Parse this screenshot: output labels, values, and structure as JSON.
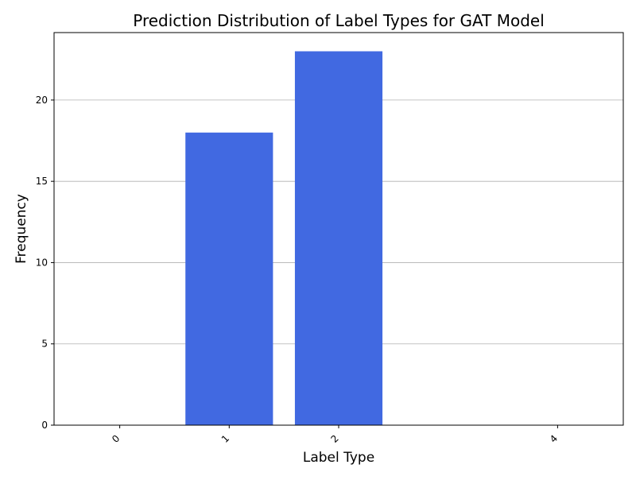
{
  "chart_data": {
    "type": "bar",
    "title": "Prediction Distribution of Label Types for GAT Model",
    "xlabel": "Label Type",
    "ylabel": "Frequency",
    "categories": [
      "0",
      "1",
      "2",
      "4"
    ],
    "x": [
      0,
      1,
      2,
      4
    ],
    "values": [
      0,
      18,
      23,
      0
    ],
    "ylim": [
      0,
      24.15
    ],
    "xlim": [
      -0.6,
      4.6
    ],
    "yticks": [
      0,
      5,
      10,
      15,
      20
    ],
    "grid": "y",
    "bar_color": "#4169e1",
    "xtick_rotation": 45
  }
}
